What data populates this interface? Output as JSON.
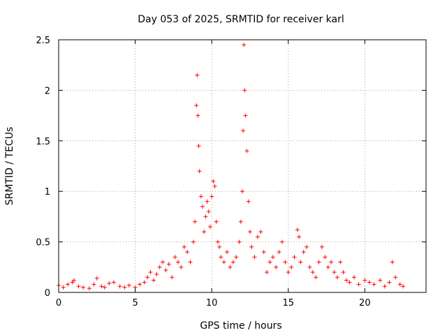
{
  "chart_data": {
    "type": "scatter",
    "title": "Day 053 of 2025, SRMTID for receiver karl",
    "xlabel": "GPS time / hours",
    "ylabel": "SRMTID / TECUs",
    "xlim": [
      0,
      24
    ],
    "ylim": [
      0,
      2.5
    ],
    "xticks": [
      0,
      5,
      10,
      15,
      20
    ],
    "xtick_labels": [
      "0",
      "5",
      "10",
      "15",
      "20"
    ],
    "yticks": [
      0,
      0.5,
      1,
      1.5,
      2,
      2.5
    ],
    "ytick_labels": [
      "0",
      "0.5",
      "1",
      "1.5",
      "2",
      "2.5"
    ],
    "grid": true,
    "marker": "+",
    "series": [
      {
        "name": "SRMTID",
        "color": "#ff0000",
        "x": [
          0.0,
          0.3,
          0.6,
          0.9,
          1.0,
          1.3,
          1.6,
          2.0,
          2.3,
          2.5,
          2.8,
          3.0,
          3.3,
          3.6,
          4.0,
          4.3,
          4.6,
          5.0,
          5.3,
          5.6,
          5.8,
          6.0,
          6.2,
          6.4,
          6.6,
          6.8,
          7.0,
          7.2,
          7.4,
          7.6,
          7.8,
          8.0,
          8.2,
          8.4,
          8.6,
          8.8,
          8.9,
          9.0,
          9.05,
          9.1,
          9.15,
          9.2,
          9.3,
          9.4,
          9.5,
          9.6,
          9.7,
          9.8,
          9.9,
          10.0,
          10.1,
          10.2,
          10.3,
          10.4,
          10.5,
          10.6,
          10.8,
          11.0,
          11.2,
          11.4,
          11.6,
          11.8,
          11.9,
          12.0,
          12.05,
          12.1,
          12.15,
          12.2,
          12.3,
          12.4,
          12.5,
          12.6,
          12.8,
          13.0,
          13.2,
          13.4,
          13.6,
          13.8,
          14.0,
          14.2,
          14.4,
          14.6,
          14.8,
          15.0,
          15.2,
          15.4,
          15.6,
          15.7,
          15.8,
          16.0,
          16.2,
          16.4,
          16.6,
          16.8,
          17.0,
          17.2,
          17.4,
          17.6,
          17.8,
          18.0,
          18.2,
          18.4,
          18.6,
          18.8,
          19.0,
          19.3,
          19.6,
          20.0,
          20.3,
          20.6,
          21.0,
          21.3,
          21.6,
          21.8,
          22.0,
          22.3,
          22.5
        ],
        "y": [
          0.07,
          0.05,
          0.08,
          0.1,
          0.12,
          0.06,
          0.05,
          0.04,
          0.08,
          0.14,
          0.06,
          0.05,
          0.09,
          0.1,
          0.06,
          0.05,
          0.07,
          0.05,
          0.08,
          0.1,
          0.15,
          0.2,
          0.12,
          0.18,
          0.25,
          0.3,
          0.22,
          0.28,
          0.15,
          0.35,
          0.3,
          0.25,
          0.45,
          0.4,
          0.3,
          0.5,
          0.7,
          1.85,
          2.15,
          1.75,
          1.45,
          1.2,
          0.95,
          0.85,
          0.6,
          0.75,
          0.9,
          0.8,
          0.65,
          0.95,
          1.1,
          1.05,
          0.7,
          0.5,
          0.45,
          0.35,
          0.3,
          0.4,
          0.25,
          0.3,
          0.35,
          0.5,
          0.7,
          1.0,
          1.6,
          2.45,
          2.0,
          1.75,
          1.4,
          0.9,
          0.6,
          0.45,
          0.35,
          0.55,
          0.6,
          0.4,
          0.2,
          0.3,
          0.35,
          0.25,
          0.4,
          0.5,
          0.3,
          0.2,
          0.25,
          0.35,
          0.62,
          0.55,
          0.3,
          0.4,
          0.45,
          0.25,
          0.2,
          0.15,
          0.3,
          0.45,
          0.35,
          0.25,
          0.3,
          0.2,
          0.15,
          0.3,
          0.2,
          0.12,
          0.1,
          0.15,
          0.08,
          0.12,
          0.1,
          0.08,
          0.12,
          0.06,
          0.1,
          0.3,
          0.15,
          0.08,
          0.06
        ]
      }
    ]
  }
}
